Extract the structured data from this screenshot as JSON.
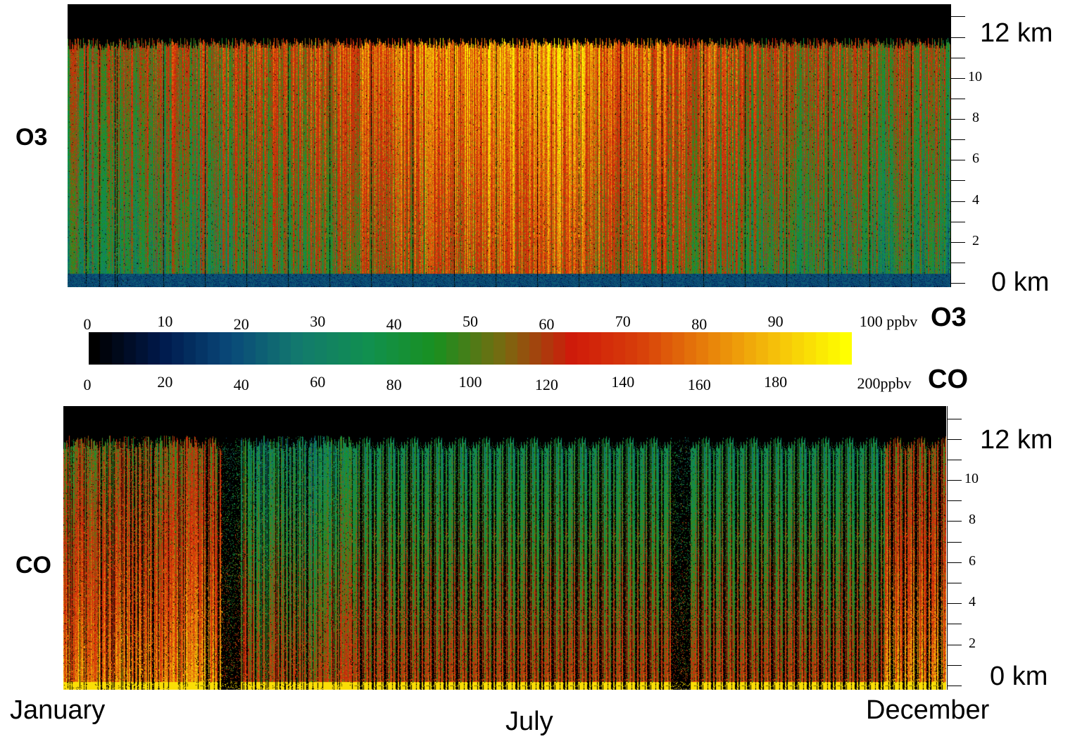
{
  "panels": {
    "o3": {
      "label": "O3",
      "top_unit_label": "12 km",
      "bottom_unit_label": "0 km",
      "tick_labels": [
        "10",
        "8",
        "6",
        "4",
        "2"
      ]
    },
    "co": {
      "label": "CO",
      "top_unit_label": "12 km",
      "bottom_unit_label": "0 km",
      "tick_labels": [
        "10",
        "8",
        "6",
        "4",
        "2"
      ]
    }
  },
  "colorbar": {
    "o3_ticks": [
      "0",
      "10",
      "20",
      "30",
      "40",
      "50",
      "60",
      "70",
      "80",
      "90"
    ],
    "o3_end_label": "100 ppbv",
    "o3_gas": "O3",
    "co_ticks": [
      "0",
      "20",
      "40",
      "60",
      "80",
      "100",
      "120",
      "140",
      "160",
      "180"
    ],
    "co_end_label": "200ppbv",
    "co_gas": "CO",
    "colors": [
      "#000000",
      "#001a4d",
      "#0a4a7a",
      "#137a6e",
      "#119050",
      "#1a9020",
      "#7a6a10",
      "#d01a0a",
      "#d8400a",
      "#e8820a",
      "#f6c30a",
      "#ffff00"
    ]
  },
  "x_axis": {
    "labels": [
      "January",
      "July",
      "December"
    ]
  },
  "chart_data": [
    {
      "type": "heatmap",
      "title": "",
      "variable": "O3",
      "x_range": [
        "January",
        "December"
      ],
      "y_range_km": [
        0,
        12
      ],
      "y_ticks_km": [
        2,
        4,
        6,
        8,
        10
      ],
      "color_scale_ppbv": [
        0,
        100
      ]
    },
    {
      "type": "heatmap",
      "title": "",
      "variable": "CO",
      "x_range": [
        "January",
        "December"
      ],
      "y_range_km": [
        0,
        12
      ],
      "y_ticks_km": [
        2,
        4,
        6,
        8,
        10
      ],
      "color_scale_ppbv": [
        0,
        200
      ]
    }
  ]
}
